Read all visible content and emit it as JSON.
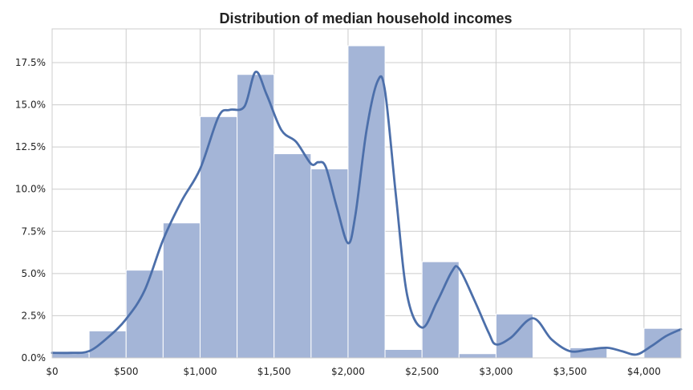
{
  "chart_data": {
    "type": "bar",
    "title": "Distribution of median household incomes",
    "xlabel": "",
    "ylabel": "",
    "xlim": [
      0,
      4250
    ],
    "ylim": [
      0,
      19.5
    ],
    "bin_width": 250,
    "bins": [
      {
        "start": 0,
        "end": 250,
        "value": 0.3
      },
      {
        "start": 250,
        "end": 500,
        "value": 1.6
      },
      {
        "start": 500,
        "end": 750,
        "value": 5.2
      },
      {
        "start": 750,
        "end": 1000,
        "value": 8.0
      },
      {
        "start": 1000,
        "end": 1250,
        "value": 14.3
      },
      {
        "start": 1250,
        "end": 1500,
        "value": 16.8
      },
      {
        "start": 1500,
        "end": 1750,
        "value": 12.1
      },
      {
        "start": 1750,
        "end": 2000,
        "value": 11.2
      },
      {
        "start": 2000,
        "end": 2250,
        "value": 18.5
      },
      {
        "start": 2250,
        "end": 2500,
        "value": 0.5
      },
      {
        "start": 2500,
        "end": 2750,
        "value": 5.7
      },
      {
        "start": 2750,
        "end": 3000,
        "value": 0.25
      },
      {
        "start": 3000,
        "end": 3250,
        "value": 2.6
      },
      {
        "start": 3250,
        "end": 3500,
        "value": 0
      },
      {
        "start": 3500,
        "end": 3750,
        "value": 0.6
      },
      {
        "start": 3750,
        "end": 4000,
        "value": 0
      },
      {
        "start": 4000,
        "end": 4250,
        "value": 1.75
      }
    ],
    "kde": {
      "x": [
        0,
        125,
        250,
        375,
        500,
        625,
        750,
        875,
        1000,
        1125,
        1200,
        1300,
        1375,
        1450,
        1550,
        1650,
        1750,
        1800,
        1850,
        1925,
        2000,
        2050,
        2125,
        2200,
        2250,
        2325,
        2400,
        2500,
        2600,
        2700,
        2750,
        2850,
        2950,
        3000,
        3100,
        3250,
        3375,
        3500,
        3625,
        3750,
        3850,
        3950,
        4050,
        4150,
        4250
      ],
      "y": [
        0.3,
        0.3,
        0.4,
        1.2,
        2.3,
        4.0,
        7.0,
        9.3,
        11.2,
        14.3,
        14.7,
        14.9,
        16.95,
        15.6,
        13.5,
        12.8,
        11.5,
        11.6,
        11.3,
        8.9,
        6.8,
        8.5,
        13.5,
        16.4,
        15.8,
        9.5,
        3.7,
        1.8,
        3.3,
        5.1,
        5.3,
        3.5,
        1.5,
        0.8,
        1.2,
        2.35,
        1.1,
        0.4,
        0.5,
        0.6,
        0.4,
        0.2,
        0.7,
        1.3,
        1.7
      ]
    },
    "x_ticks": [
      0,
      500,
      1000,
      1500,
      2000,
      2500,
      3000,
      3500,
      4000
    ],
    "x_tick_labels": [
      "$0",
      "$500",
      "$1,000",
      "$1,500",
      "$2,000",
      "$2,500",
      "$3,000",
      "$3,500",
      "$4,000"
    ],
    "y_ticks": [
      0,
      2.5,
      5.0,
      7.5,
      10.0,
      12.5,
      15.0,
      17.5
    ],
    "y_tick_labels": [
      "0.0%",
      "2.5%",
      "5.0%",
      "7.5%",
      "10.0%",
      "12.5%",
      "15.0%",
      "17.5%"
    ],
    "grid": true,
    "colors": {
      "bar_fill": "#a4b5d7",
      "bar_edge": "#ffffff",
      "kde_line": "#4c6faa",
      "grid": "#cccccc",
      "text": "#222222"
    }
  }
}
